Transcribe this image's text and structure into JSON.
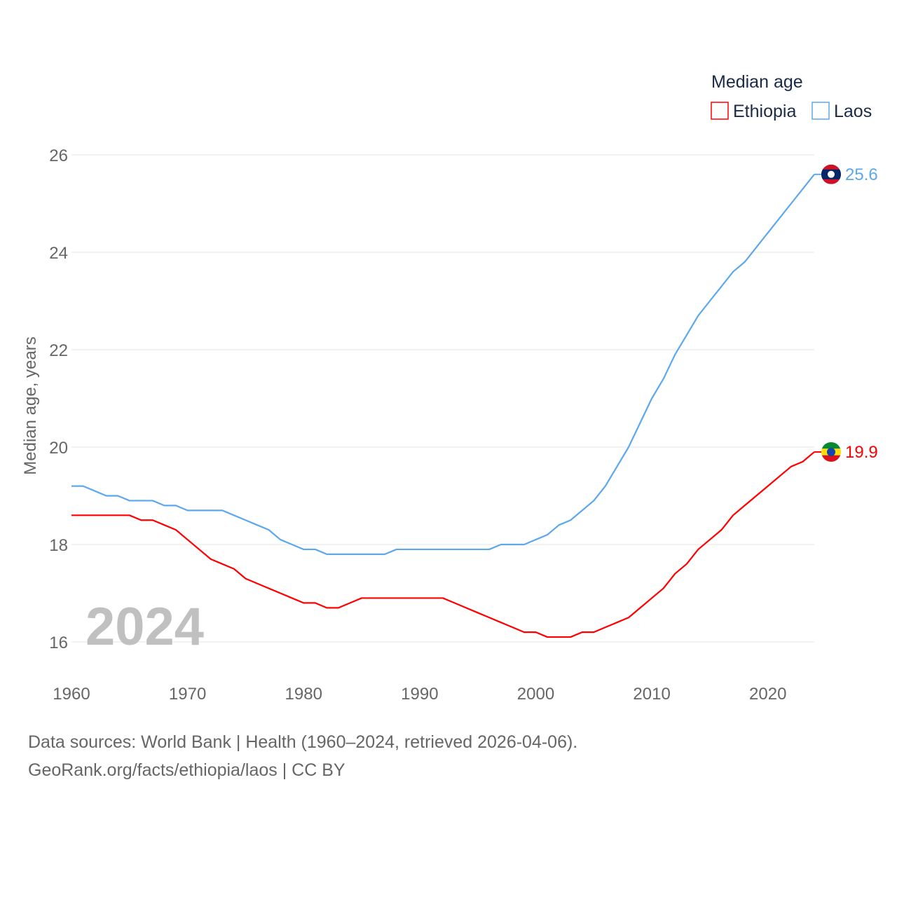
{
  "chart_data": {
    "type": "line",
    "title": "Median age",
    "xlabel": "",
    "ylabel": "Median age, years",
    "xlim": [
      1960,
      2024
    ],
    "ylim": [
      15.4,
      26.3
    ],
    "xticks": [
      1960,
      1970,
      1980,
      1990,
      2000,
      2010,
      2020
    ],
    "yticks": [
      16,
      18,
      20,
      22,
      24,
      26
    ],
    "grid": true,
    "legend_position": "top-right",
    "year_watermark": "2024",
    "x": [
      1960,
      1961,
      1962,
      1963,
      1964,
      1965,
      1966,
      1967,
      1968,
      1969,
      1970,
      1971,
      1972,
      1973,
      1974,
      1975,
      1976,
      1977,
      1978,
      1979,
      1980,
      1981,
      1982,
      1983,
      1984,
      1985,
      1986,
      1987,
      1988,
      1989,
      1990,
      1991,
      1992,
      1993,
      1994,
      1995,
      1996,
      1997,
      1998,
      1999,
      2000,
      2001,
      2002,
      2003,
      2004,
      2005,
      2006,
      2007,
      2008,
      2009,
      2010,
      2011,
      2012,
      2013,
      2014,
      2015,
      2016,
      2017,
      2018,
      2019,
      2020,
      2021,
      2022,
      2023,
      2024
    ],
    "series": [
      {
        "name": "Ethiopia",
        "color": "#ff0000",
        "end_label": "19.9",
        "values": [
          18.6,
          18.6,
          18.6,
          18.6,
          18.6,
          18.6,
          18.5,
          18.5,
          18.4,
          18.3,
          18.1,
          17.9,
          17.7,
          17.6,
          17.5,
          17.3,
          17.2,
          17.1,
          17.0,
          16.9,
          16.8,
          16.8,
          16.7,
          16.7,
          16.8,
          16.9,
          16.9,
          16.9,
          16.9,
          16.9,
          16.9,
          16.9,
          16.9,
          16.8,
          16.7,
          16.6,
          16.5,
          16.4,
          16.3,
          16.2,
          16.2,
          16.1,
          16.1,
          16.1,
          16.2,
          16.2,
          16.3,
          16.4,
          16.5,
          16.7,
          16.9,
          17.1,
          17.4,
          17.6,
          17.9,
          18.1,
          18.3,
          18.6,
          18.8,
          19.0,
          19.2,
          19.4,
          19.6,
          19.7,
          19.9
        ]
      },
      {
        "name": "Laos",
        "color": "#5ca8ef",
        "end_label": "25.6",
        "values": [
          19.2,
          19.2,
          19.1,
          19.0,
          19.0,
          18.9,
          18.9,
          18.9,
          18.8,
          18.8,
          18.7,
          18.7,
          18.7,
          18.7,
          18.6,
          18.5,
          18.4,
          18.3,
          18.1,
          18.0,
          17.9,
          17.9,
          17.8,
          17.8,
          17.8,
          17.8,
          17.8,
          17.8,
          17.9,
          17.9,
          17.9,
          17.9,
          17.9,
          17.9,
          17.9,
          17.9,
          17.9,
          18.0,
          18.0,
          18.0,
          18.1,
          18.2,
          18.4,
          18.5,
          18.7,
          18.9,
          19.2,
          19.6,
          20.0,
          20.5,
          21.0,
          21.4,
          21.9,
          22.3,
          22.7,
          23.0,
          23.3,
          23.6,
          23.8,
          24.1,
          24.4,
          24.7,
          25.0,
          25.3,
          25.6
        ]
      }
    ]
  },
  "footer": {
    "line1": "Data sources: World Bank | Health (1960–2024, retrieved 2026-04-06).",
    "line2": "GeoRank.org/facts/ethiopia/laos | CC BY"
  }
}
